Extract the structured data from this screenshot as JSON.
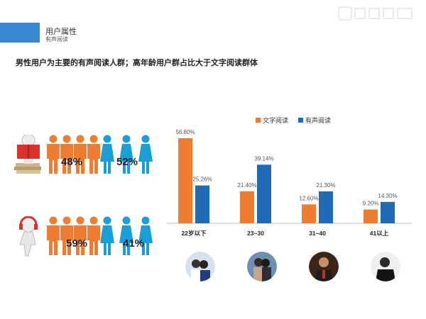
{
  "header": {
    "title": "用户属性",
    "subtitle": "有声阅读"
  },
  "headline": "男性用户为主要的有声阅读人群；高年龄用户群占比大于文字阅读群体",
  "people": {
    "text_reading": {
      "male_pct": "48%",
      "female_pct": "52%",
      "icon": "book-reader-icon"
    },
    "audio_reading": {
      "male_pct": "59%",
      "female_pct": "41%",
      "icon": "headphone-listener-icon"
    }
  },
  "colors": {
    "text_reading": "#ed7d31",
    "audio_reading": "#1f6bb5",
    "male": "#ed7d31",
    "female": "#1a9ed8",
    "accent": "#3a86cf"
  },
  "chart_data": {
    "type": "bar",
    "categories": [
      "22岁以下",
      "23~30",
      "31~40",
      "41以上"
    ],
    "series": [
      {
        "name": "文字阅读",
        "values": [
          56.8,
          21.4,
          12.6,
          9.2
        ],
        "labels": [
          "56.80%",
          "21.40%",
          "12.60%",
          "9.20%"
        ],
        "color": "#ed7d31"
      },
      {
        "name": "有声阅读",
        "values": [
          25.26,
          39.14,
          21.3,
          14.3
        ],
        "labels": [
          "25.26%",
          "39.14%",
          "21.30%",
          "14.30%"
        ],
        "color": "#1f6bb5"
      }
    ],
    "ylim": [
      0,
      60
    ],
    "grid": false,
    "legend_position": "top"
  },
  "photos": [
    "students-photo",
    "couple-photo",
    "businessman-photo",
    "older-man-photo"
  ]
}
